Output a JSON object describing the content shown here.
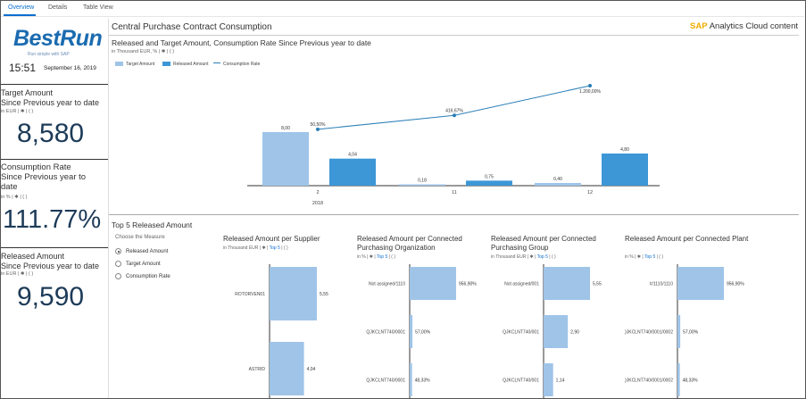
{
  "tabs": [
    {
      "label": "Overview"
    },
    {
      "label": "Details"
    },
    {
      "label": "Table View"
    }
  ],
  "logo": {
    "text": "BestRun",
    "tagline": "Run simple with SAP"
  },
  "clock": {
    "time": "15:51",
    "date": "September 16, 2019"
  },
  "kpis": [
    {
      "title_line1": "Target Amount",
      "title_line2": "Since Previous year to date",
      "title_line3": "",
      "unit": "in EUR  |  ✱ | ( )",
      "value": "8,580"
    },
    {
      "title_line1": "Consumption Rate",
      "title_line2": "Since Previous year to",
      "title_line3": "date",
      "unit": "in %  |  ✱ | ( )",
      "value": "111.77%"
    },
    {
      "title_line1": "Released  Amount",
      "title_line2": "Since Previous year to date",
      "title_line3": "",
      "unit": "in EUR  |  ✱ | ( )",
      "value": "9,590"
    }
  ],
  "main": {
    "title": "Central Purchase Contract Consumption",
    "brand": "SAP",
    "brand_suffix": " Analytics Cloud content"
  },
  "colors": {
    "target": "#9fc4e8",
    "released": "#3d97d6",
    "rate": "#2a7fb8",
    "accent": "#0a6ed1"
  },
  "chart_data": [
    {
      "type": "bar",
      "title": "Released and Target Amount, Consumption Rate Since Previous year to date",
      "subtitle": "in Thousand EUR, %  |  ✱ | ( )",
      "categories": [
        "2",
        "11",
        "12"
      ],
      "category_group": "2018",
      "series": [
        {
          "name": "Target Amount",
          "values": [
            8.0,
            0.18,
            0.4
          ],
          "labels": [
            "8,00",
            "0,18",
            "0,40"
          ]
        },
        {
          "name": "Released Amount",
          "values": [
            4.04,
            0.75,
            4.8
          ],
          "labels": [
            "4,04",
            "0,75",
            "4,80"
          ]
        },
        {
          "name": "Consumption Rate",
          "type": "line",
          "values": [
            50.5,
            416.67,
            1200.0
          ],
          "labels": [
            "50,50%",
            "416,67%",
            "1.200,00%"
          ]
        }
      ]
    },
    {
      "type": "bar",
      "orientation": "horizontal",
      "title": "Released Amount per Supplier",
      "subtitle_prefix": "in Thousand EUR  |  ✱ |",
      "subtitle_top": "Top 5",
      "subtitle_suffix": " | ( )",
      "categories": [
        "ROTORVEN01",
        "ASTRID"
      ],
      "values": [
        5.55,
        4.04
      ],
      "labels": [
        "5,55",
        "4,04"
      ]
    },
    {
      "type": "bar",
      "orientation": "horizontal",
      "title": "Released Amount per Connected Purchasing Organization",
      "subtitle_prefix": "in %  |  ✱ |",
      "subtitle_top": "Top 5",
      "subtitle_suffix": " | ( )",
      "categories": [
        "Not assigned/1110",
        "QJKCLNT740/0001",
        "QJKCLNT740/0001"
      ],
      "values": [
        956.9,
        57.0,
        48.33
      ],
      "labels": [
        "956,90%",
        "57,00%",
        "48,33%"
      ]
    },
    {
      "type": "bar",
      "orientation": "horizontal",
      "title": "Released Amount per  Connected Purchasing Group",
      "subtitle_prefix": "in Thousand EUR  |  ✱ |",
      "subtitle_top": "Top 5",
      "subtitle_suffix": " | ( )",
      "categories": [
        "Not assigned/001",
        "QJKCLNT740/001",
        "QJKCLNT740/001"
      ],
      "values": [
        5.55,
        2.9,
        1.14
      ],
      "labels": [
        "5,55",
        "2,90",
        "1,14"
      ]
    },
    {
      "type": "bar",
      "orientation": "horizontal",
      "title": "Released Amount per Connected Plant",
      "subtitle_prefix": "in %  |  ✱ |",
      "subtitle_top": "Top 5",
      "subtitle_suffix": " | ( )",
      "categories": [
        "#/1110/1110",
        "QJKCLNT740/0001/0002",
        "QJKCLNT740/0001/0002"
      ],
      "values": [
        956.9,
        57.0,
        48.33
      ],
      "labels": [
        "956,90%",
        "57,00%",
        "48,33%"
      ]
    }
  ],
  "top5": {
    "title": "Top 5 Released Amount",
    "measure_label": "Choose the Measure",
    "options": [
      {
        "label": "Released Amount",
        "selected": true
      },
      {
        "label": "Target Amount",
        "selected": false
      },
      {
        "label": "Consumption Rate",
        "selected": false
      }
    ]
  }
}
